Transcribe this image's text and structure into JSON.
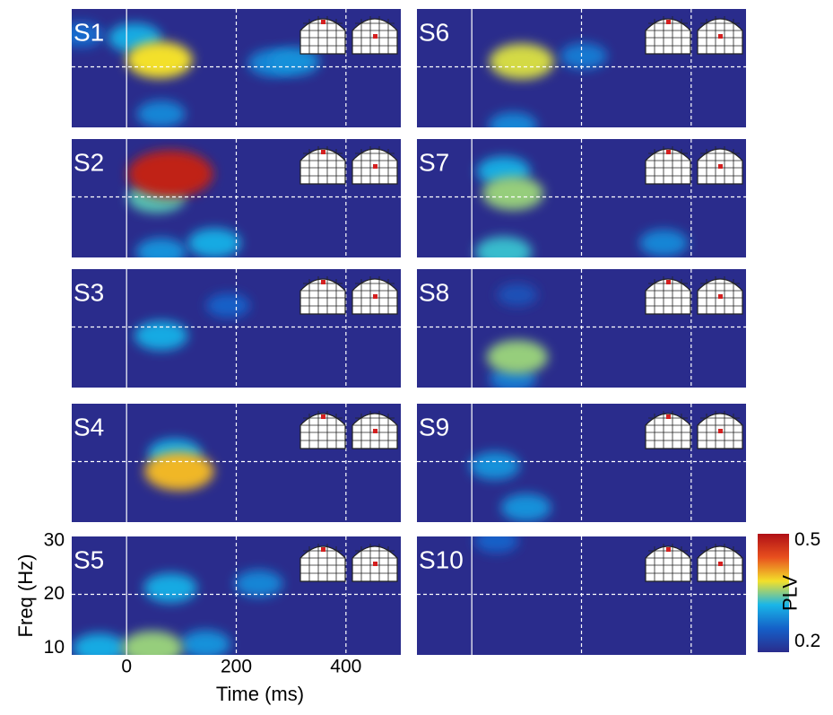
{
  "chart_data": {
    "type": "heatmap",
    "xlabel": "Time (ms)",
    "ylabel": "Freq (Hz)",
    "xlim": [
      -100,
      500
    ],
    "xticks": [
      0,
      200,
      400
    ],
    "ylim": [
      8.7,
      30.8
    ],
    "yticks": [
      10,
      20,
      30
    ],
    "vlines": [
      {
        "x": 0,
        "style": "solid"
      },
      {
        "x": 200,
        "style": "dashed"
      },
      {
        "x": 400,
        "style": "dashed"
      }
    ],
    "hlines": [
      {
        "y": 20,
        "style": "dashed"
      }
    ],
    "colorbar": {
      "label": "PLV",
      "clim": [
        0.17,
        0.52
      ],
      "ticks": [
        0.2,
        0.5
      ]
    },
    "colormap": [
      "#2a2c8c",
      "#1560c8",
      "#19b6e8",
      "#f3e02a",
      "#e8501e",
      "#b01016"
    ],
    "panels": [
      {
        "label": "S1",
        "x": [
          -83,
          15,
          266,
          306,
          63,
          60
        ],
        "y": [
          26,
          25.4,
          20.7,
          21,
          11.2,
          21.3
        ],
        "values": [
          0.25,
          0.3,
          0.27,
          0.28,
          0.27,
          0.38
        ]
      },
      {
        "label": "S2",
        "x": [
          63,
          160,
          55,
          80
        ],
        "y": [
          9.7,
          11.4,
          20,
          24.3
        ],
        "values": [
          0.28,
          0.3,
          0.33,
          0.5
        ]
      },
      {
        "label": "S3",
        "x": [
          185,
          63
        ],
        "y": [
          24,
          18.4
        ],
        "values": [
          0.24,
          0.3
        ]
      },
      {
        "label": "S4",
        "x": [
          88,
          96
        ],
        "y": [
          21.5,
          18.2
        ],
        "values": [
          0.3,
          0.4
        ]
      },
      {
        "label": "S5",
        "x": [
          241,
          144,
          -50,
          80,
          47
        ],
        "y": [
          22,
          10.7,
          10,
          21.2,
          10
        ],
        "values": [
          0.27,
          0.28,
          0.3,
          0.3,
          0.35
        ]
      },
      {
        "label": "S6",
        "x": [
          204,
          75,
          91
        ],
        "y": [
          22,
          9,
          21
        ],
        "values": [
          0.26,
          0.27,
          0.37
        ]
      },
      {
        "label": "S7",
        "x": [
          350,
          58,
          58,
          75
        ],
        "y": [
          11.4,
          24.8,
          9.7,
          20.7
        ],
        "values": [
          0.27,
          0.3,
          0.32,
          0.35
        ]
      },
      {
        "label": "S8",
        "x": [
          83,
          75,
          83
        ],
        "y": [
          26,
          10.3,
          14.4
        ],
        "values": [
          0.22,
          0.26,
          0.35
        ]
      },
      {
        "label": "S9",
        "x": [
          42,
          99
        ],
        "y": [
          19.2,
          11.4
        ],
        "values": [
          0.28,
          0.28
        ]
      },
      {
        "label": "S10",
        "x": [
          45
        ],
        "y": [
          30
        ],
        "values": [
          0.24
        ]
      }
    ]
  }
}
